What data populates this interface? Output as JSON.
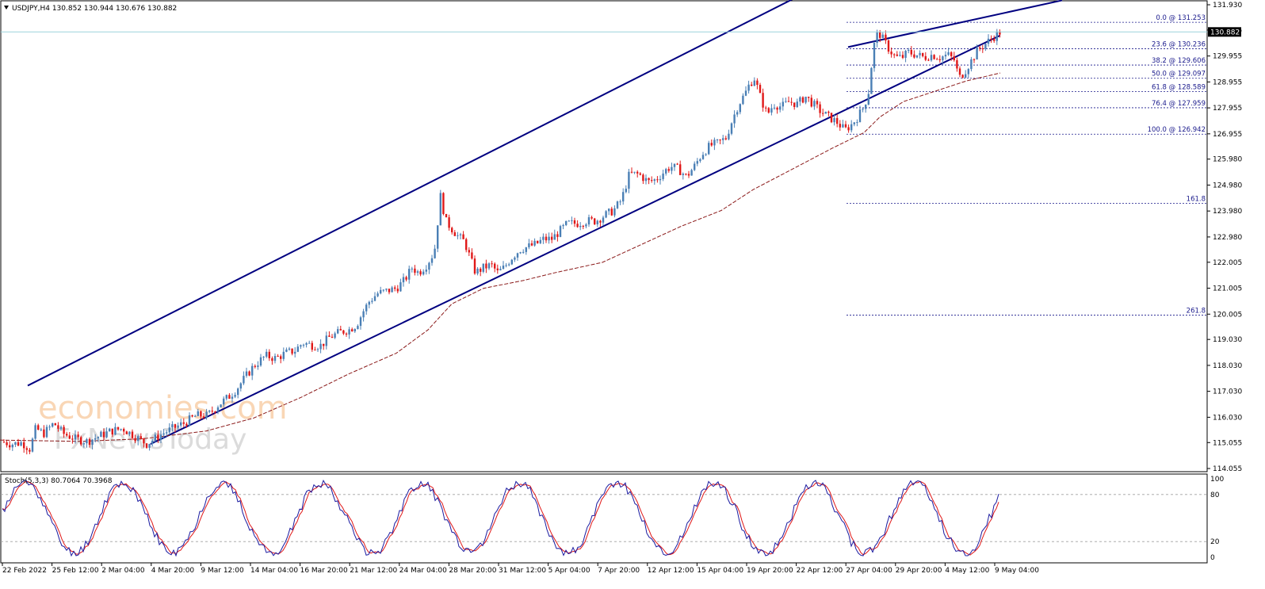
{
  "header": {
    "symbol_line": "USDJPY,H4  130.852 130.944 130.676 130.882",
    "stoch_line": "Stoch(5,3,3) 80.7064 70.3968"
  },
  "watermark": {
    "line1": "economies.com",
    "line2": "FxNewsToday"
  },
  "colors": {
    "bull": "#4a7fb5",
    "bear": "#e01818",
    "channel": "#000080",
    "ma": "#8b1a1a",
    "fib": "#1a1a8c",
    "stoch_main": "#1a1aa0",
    "stoch_signal": "#e01818",
    "price_line": "#9cd2dc"
  },
  "chart_data": {
    "type": "candlestick",
    "symbol": "USDJPY",
    "timeframe": "H4",
    "current_price": "130.882",
    "price_ticks": [
      "131.930",
      "130.955",
      "129.955",
      "128.955",
      "127.955",
      "126.955",
      "125.980",
      "124.980",
      "123.980",
      "122.980",
      "122.005",
      "121.005",
      "120.005",
      "119.030",
      "118.030",
      "117.030",
      "116.030",
      "115.055",
      "114.055"
    ],
    "time_labels": [
      "22 Feb 2022",
      "25 Feb 12:00",
      "2 Mar 04:00",
      "4 Mar 20:00",
      "9 Mar 12:00",
      "14 Mar 04:00",
      "16 Mar 20:00",
      "21 Mar 12:00",
      "24 Mar 04:00",
      "28 Mar 20:00",
      "31 Mar 12:00",
      "5 Apr 04:00",
      "7 Apr 20:00",
      "12 Apr 12:00",
      "15 Apr 04:00",
      "19 Apr 20:00",
      "22 Apr 12:00",
      "27 Apr 04:00",
      "29 Apr 20:00",
      "4 May 12:00",
      "9 May 04:00"
    ],
    "fib_levels": [
      {
        "label": "0.0 @ 131.253",
        "value": 131.253
      },
      {
        "label": "23.6 @ 130.236",
        "value": 130.236
      },
      {
        "label": "38.2 @ 129.606",
        "value": 129.606
      },
      {
        "label": "50.0 @ 129.097",
        "value": 129.097
      },
      {
        "label": "61.8 @ 128.589",
        "value": 128.589
      },
      {
        "label": "76.4 @ 127.959",
        "value": 127.959
      },
      {
        "label": "100.0 @ 126.942",
        "value": 126.942
      },
      {
        "label": "161.8",
        "value": 124.28
      },
      {
        "label": "261.8",
        "value": 119.97
      }
    ],
    "price_path": [
      [
        0,
        115.1
      ],
      [
        15,
        115.0
      ],
      [
        28,
        115.05
      ],
      [
        38,
        114.8
      ],
      [
        45,
        115.6
      ],
      [
        55,
        115.4
      ],
      [
        68,
        115.8
      ],
      [
        80,
        115.4
      ],
      [
        95,
        115.2
      ],
      [
        110,
        115.1
      ],
      [
        125,
        115.3
      ],
      [
        140,
        115.5
      ],
      [
        155,
        115.6
      ],
      [
        170,
        115.3
      ],
      [
        185,
        115.0
      ],
      [
        195,
        115.2
      ],
      [
        205,
        115.4
      ],
      [
        218,
        115.6
      ],
      [
        232,
        115.8
      ],
      [
        248,
        116.1
      ],
      [
        262,
        116.1
      ],
      [
        275,
        116.5
      ],
      [
        288,
        116.8
      ],
      [
        298,
        117.1
      ],
      [
        310,
        117.6
      ],
      [
        320,
        118.0
      ],
      [
        335,
        118.4
      ],
      [
        348,
        118.3
      ],
      [
        360,
        118.5
      ],
      [
        372,
        118.6
      ],
      [
        382,
        118.9
      ],
      [
        395,
        118.8
      ],
      [
        405,
        118.8
      ],
      [
        415,
        119.1
      ],
      [
        428,
        119.3
      ],
      [
        440,
        119.4
      ],
      [
        450,
        119.6
      ],
      [
        458,
        120.1
      ],
      [
        466,
        120.5
      ],
      [
        476,
        120.8
      ],
      [
        488,
        120.9
      ],
      [
        500,
        121.0
      ],
      [
        510,
        121.3
      ],
      [
        520,
        121.8
      ],
      [
        528,
        121.6
      ],
      [
        538,
        121.9
      ],
      [
        548,
        122.4
      ],
      [
        556,
        124.6
      ],
      [
        562,
        123.6
      ],
      [
        570,
        123.3
      ],
      [
        578,
        123.0
      ],
      [
        586,
        122.8
      ],
      [
        594,
        122.1
      ],
      [
        600,
        121.6
      ],
      [
        610,
        121.8
      ],
      [
        620,
        121.9
      ],
      [
        628,
        121.6
      ],
      [
        636,
        121.8
      ],
      [
        646,
        122.2
      ],
      [
        656,
        122.5
      ],
      [
        666,
        122.6
      ],
      [
        676,
        122.7
      ],
      [
        686,
        122.9
      ],
      [
        696,
        122.9
      ],
      [
        706,
        123.2
      ],
      [
        716,
        123.5
      ],
      [
        728,
        123.5
      ],
      [
        740,
        123.6
      ],
      [
        752,
        123.6
      ],
      [
        762,
        123.8
      ],
      [
        774,
        124.0
      ],
      [
        784,
        124.4
      ],
      [
        794,
        125.4
      ],
      [
        806,
        125.4
      ],
      [
        818,
        125.1
      ],
      [
        828,
        125.2
      ],
      [
        838,
        125.5
      ],
      [
        846,
        125.7
      ],
      [
        856,
        125.6
      ],
      [
        866,
        125.3
      ],
      [
        876,
        125.7
      ],
      [
        886,
        126.2
      ],
      [
        896,
        126.5
      ],
      [
        906,
        126.6
      ],
      [
        916,
        126.8
      ],
      [
        924,
        127.5
      ],
      [
        932,
        128.1
      ],
      [
        940,
        128.5
      ],
      [
        946,
        128.9
      ],
      [
        952,
        129.1
      ],
      [
        960,
        128.3
      ],
      [
        968,
        127.7
      ],
      [
        976,
        128.1
      ],
      [
        986,
        128.0
      ],
      [
        996,
        128.2
      ],
      [
        1006,
        128.1
      ],
      [
        1016,
        128.4
      ],
      [
        1026,
        128.1
      ],
      [
        1036,
        127.8
      ],
      [
        1046,
        127.6
      ],
      [
        1056,
        127.4
      ],
      [
        1066,
        127.1
      ],
      [
        1074,
        127.3
      ],
      [
        1082,
        127.6
      ],
      [
        1090,
        128.0
      ],
      [
        1096,
        128.6
      ],
      [
        1102,
        130.3
      ],
      [
        1108,
        130.9
      ],
      [
        1114,
        130.6
      ],
      [
        1122,
        130.2
      ],
      [
        1130,
        129.9
      ],
      [
        1138,
        129.9
      ],
      [
        1146,
        130.1
      ],
      [
        1156,
        130.0
      ],
      [
        1166,
        129.9
      ],
      [
        1176,
        130.0
      ],
      [
        1186,
        129.9
      ],
      [
        1196,
        130.0
      ],
      [
        1204,
        129.8
      ],
      [
        1210,
        129.1
      ],
      [
        1218,
        129.4
      ],
      [
        1226,
        129.8
      ],
      [
        1234,
        130.2
      ],
      [
        1242,
        130.4
      ],
      [
        1250,
        130.6
      ],
      [
        1258,
        130.8
      ],
      [
        1262,
        130.88
      ]
    ],
    "ma_path": [
      [
        0,
        115.15
      ],
      [
        100,
        115.1
      ],
      [
        180,
        115.2
      ],
      [
        260,
        115.5
      ],
      [
        320,
        116.0
      ],
      [
        380,
        116.8
      ],
      [
        440,
        117.7
      ],
      [
        500,
        118.5
      ],
      [
        540,
        119.4
      ],
      [
        570,
        120.4
      ],
      [
        610,
        121.0
      ],
      [
        660,
        121.3
      ],
      [
        700,
        121.6
      ],
      [
        760,
        122.0
      ],
      [
        810,
        122.7
      ],
      [
        860,
        123.4
      ],
      [
        910,
        124.0
      ],
      [
        950,
        124.8
      ],
      [
        1000,
        125.6
      ],
      [
        1050,
        126.4
      ],
      [
        1090,
        127.0
      ],
      [
        1110,
        127.6
      ],
      [
        1140,
        128.2
      ],
      [
        1180,
        128.6
      ],
      [
        1220,
        129.0
      ],
      [
        1262,
        129.3
      ]
    ],
    "channel_upper": [
      [
        35,
        117.25
      ],
      [
        1010,
        132.3
      ]
    ],
    "channel_lower": [
      [
        190,
        115.0
      ],
      [
        1262,
        130.75
      ]
    ],
    "channel_top_right": [
      [
        1070,
        130.3
      ],
      [
        1340,
        132.1
      ]
    ],
    "stoch_ticks": [
      "100",
      "80",
      "20",
      "0"
    ],
    "stoch_last": {
      "main": 80.7064,
      "signal": 70.3968
    }
  }
}
